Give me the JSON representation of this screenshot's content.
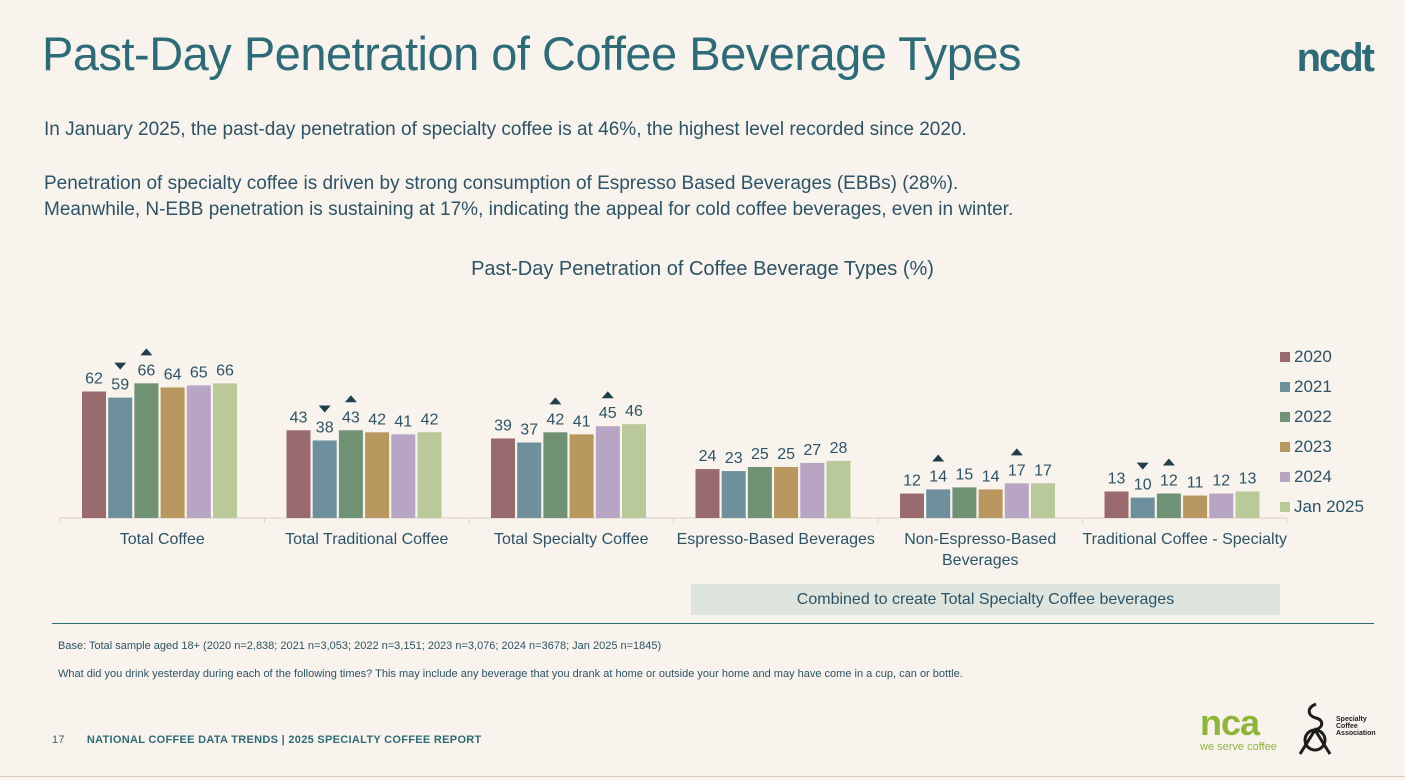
{
  "slide": {
    "title": "Past-Day Penetration of Coffee Beverage Types",
    "logo_text": "ncdt",
    "paragraph1": "In January 2025, the past-day penetration of specialty coffee is at 46%, the highest level recorded since 2020.",
    "paragraph2_line1": "Penetration of specialty coffee is driven by strong consumption of Espresso Based Beverages (EBBs) (28%).",
    "paragraph2_line2": "Meanwhile, N-EBB penetration is sustaining at 17%, indicating the appeal for cold coffee beverages, even in winter.",
    "combined_note": "Combined to create Total Specialty Coffee beverages",
    "base_note": "Base: Total sample aged 18+ (2020 n=2,838; 2021 n=3,053; 2022 n=3,151; 2023 n=3,076; 2024 n=3678; Jan 2025 n=1845)",
    "question_note": "What did you drink yesterday during each of the following times? This may include any beverage that you drank at home or outside your home and may have come in a cup, can or bottle.",
    "footer_page": "17",
    "footer_text": "NATIONAL COFFEE DATA TRENDS  | 2025 SPECIALTY COFFEE REPORT",
    "nca_logo": "nca",
    "nca_tagline": "we serve coffee",
    "sca_line1": "Specialty",
    "sca_line2": "Coffee",
    "sca_line3": "Association"
  },
  "chart_data": {
    "type": "bar",
    "title": "Past-Day Penetration of Coffee Beverage Types (%)",
    "categories": [
      [
        "Total Coffee"
      ],
      [
        "Total Traditional Coffee"
      ],
      [
        "Total Specialty Coffee"
      ],
      [
        "Espresso-Based Beverages"
      ],
      [
        "Non-Espresso-Based",
        "Beverages"
      ],
      [
        "Traditional Coffee - Specialty"
      ]
    ],
    "series": [
      {
        "name": "2020",
        "color": "#9a6b6e",
        "values": [
          62,
          43,
          39,
          24,
          12,
          13
        ]
      },
      {
        "name": "2021",
        "color": "#6e8f9c",
        "values": [
          59,
          38,
          37,
          23,
          14,
          10
        ]
      },
      {
        "name": "2022",
        "color": "#6f9275",
        "values": [
          66,
          43,
          42,
          25,
          15,
          12
        ]
      },
      {
        "name": "2023",
        "color": "#b8975e",
        "values": [
          64,
          42,
          41,
          25,
          14,
          11
        ]
      },
      {
        "name": "2024",
        "color": "#b8a5c4",
        "values": [
          65,
          41,
          45,
          27,
          17,
          12
        ]
      },
      {
        "name": "Jan 2025",
        "color": "#b9c999",
        "values": [
          66,
          42,
          46,
          28,
          17,
          13
        ]
      }
    ],
    "significance": [
      {
        "category": 0,
        "series": 1,
        "direction": "down"
      },
      {
        "category": 0,
        "series": 2,
        "direction": "up"
      },
      {
        "category": 1,
        "series": 1,
        "direction": "down"
      },
      {
        "category": 1,
        "series": 2,
        "direction": "up"
      },
      {
        "category": 2,
        "series": 2,
        "direction": "up"
      },
      {
        "category": 2,
        "series": 4,
        "direction": "up"
      },
      {
        "category": 4,
        "series": 1,
        "direction": "up"
      },
      {
        "category": 4,
        "series": 4,
        "direction": "up"
      },
      {
        "category": 5,
        "series": 1,
        "direction": "down"
      },
      {
        "category": 5,
        "series": 2,
        "direction": "up"
      }
    ],
    "legend_position": "right",
    "grid": false
  }
}
